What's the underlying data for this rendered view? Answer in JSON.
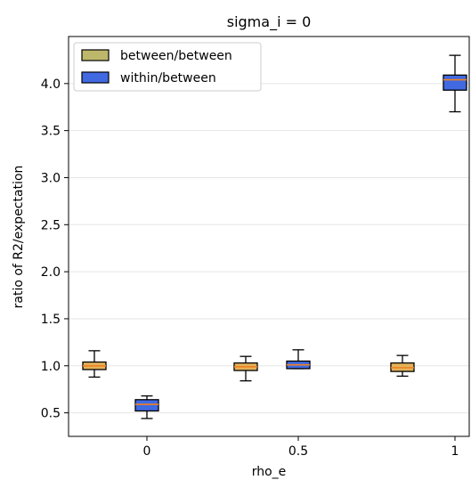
{
  "chart_data": {
    "type": "boxplot",
    "title": "sigma_i = 0",
    "xlabel": "rho_e",
    "ylabel": "ratio of R2/expectation",
    "categories": [
      "0",
      "0.5",
      "1"
    ],
    "ylim": [
      0.25,
      4.5
    ],
    "yticks": [
      "0.5",
      "1.0",
      "1.5",
      "2.0",
      "2.5",
      "3.0",
      "3.5",
      "4.0"
    ],
    "grid": "horizontal",
    "legend_position": "upper-left",
    "series": [
      {
        "name": "between/between",
        "fill_color": "#e3b25a",
        "legend_color": "#bdb76b",
        "boxes": [
          {
            "category": "0",
            "whisker_low": 0.88,
            "q1": 0.96,
            "median": 1.0,
            "q3": 1.04,
            "whisker_high": 1.16
          },
          {
            "category": "0.5",
            "whisker_low": 0.84,
            "q1": 0.95,
            "median": 0.99,
            "q3": 1.03,
            "whisker_high": 1.1
          },
          {
            "category": "1",
            "whisker_low": 0.89,
            "q1": 0.94,
            "median": 0.98,
            "q3": 1.03,
            "whisker_high": 1.11
          }
        ]
      },
      {
        "name": "within/between",
        "fill_color": "#4169e1",
        "legend_color": "#4169e1",
        "boxes": [
          {
            "category": "0",
            "whisker_low": 0.44,
            "q1": 0.52,
            "median": 0.59,
            "q3": 0.64,
            "whisker_high": 0.68
          },
          {
            "category": "0.5",
            "whisker_low": 0.97,
            "q1": 0.97,
            "median": 1.01,
            "q3": 1.05,
            "whisker_high": 1.17
          },
          {
            "category": "1",
            "whisker_low": 3.7,
            "q1": 3.93,
            "median": 4.04,
            "q3": 4.09,
            "whisker_high": 4.3
          }
        ]
      }
    ],
    "median_color": "#f08020"
  }
}
